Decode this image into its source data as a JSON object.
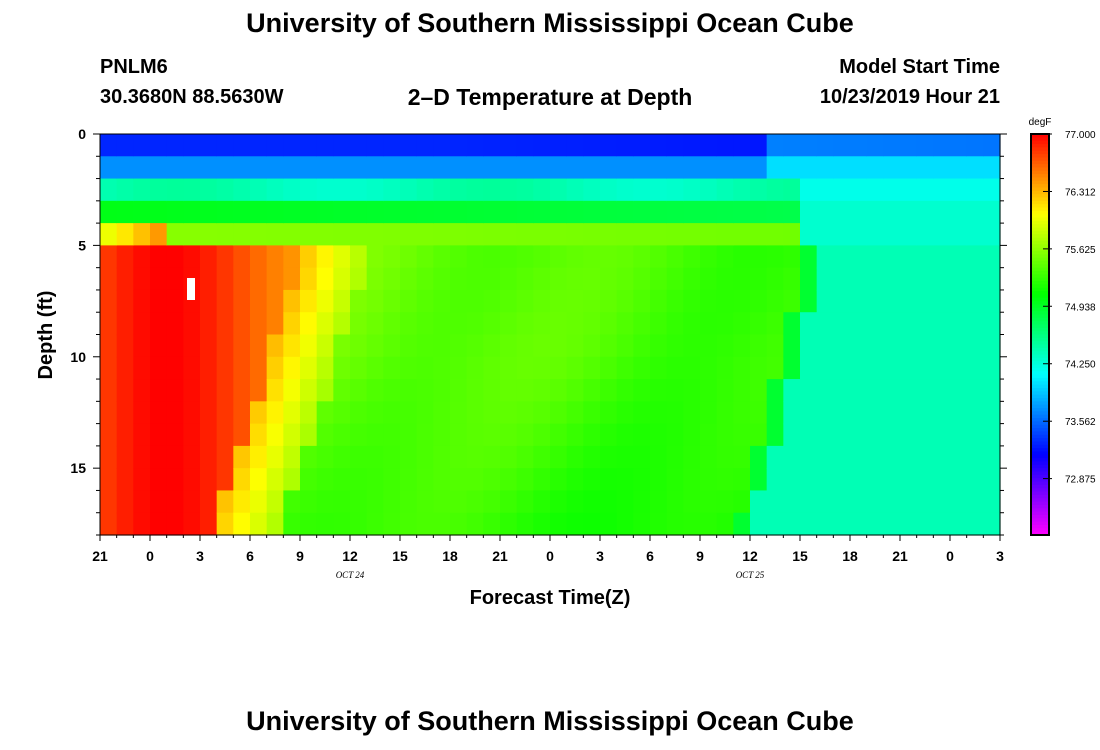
{
  "page": {
    "title_top": "University of Southern Mississippi Ocean Cube",
    "title_bottom": "University of Southern Mississippi Ocean Cube",
    "station": "PNLM6",
    "coords": "30.3680N 88.5630W",
    "model_label": "Model Start Time",
    "model_time": "10/23/2019 Hour 21"
  },
  "chart_data": {
    "type": "heatmap",
    "title": "2–D Temperature at Depth",
    "xlabel": "Forecast Time(Z)",
    "ylabel": "Depth (ft)",
    "x_tick_labels": [
      "21",
      "0",
      "3",
      "6",
      "9",
      "12",
      "15",
      "18",
      "21",
      "0",
      "3",
      "6",
      "9",
      "12",
      "15",
      "18",
      "21",
      "0",
      "3"
    ],
    "x_range_hours": [
      0,
      54
    ],
    "date_labels": [
      {
        "text": "OCT 24",
        "hour": 15
      },
      {
        "text": "OCT 25",
        "hour": 39
      }
    ],
    "y_ticks": [
      0,
      5,
      10,
      15
    ],
    "ylim": [
      0,
      18
    ],
    "y_inverted": true,
    "colorbar": {
      "unit": "degF",
      "min": 72.2,
      "max": 77.0,
      "labels": [
        "77.000",
        "76.312",
        "75.625",
        "74.938",
        "74.250",
        "73.562",
        "72.875"
      ]
    },
    "cell_hours": 1,
    "depth_levels_ft": [
      0.5,
      1.5,
      2.5,
      3.5,
      4.5,
      5.5,
      6.5,
      7.5,
      8.5,
      9.5,
      10.5,
      11.5,
      12.5,
      13.5,
      14.5,
      15.5,
      16.5,
      17.5
    ],
    "surface_rows_degF": {
      "0.5": 73.3,
      "1.5": 73.7,
      "2.5": 74.4,
      "3.5": 75.0,
      "4.5": 75.6
    },
    "core_max_degF": 77.0,
    "late_period_degF": 74.3
  }
}
